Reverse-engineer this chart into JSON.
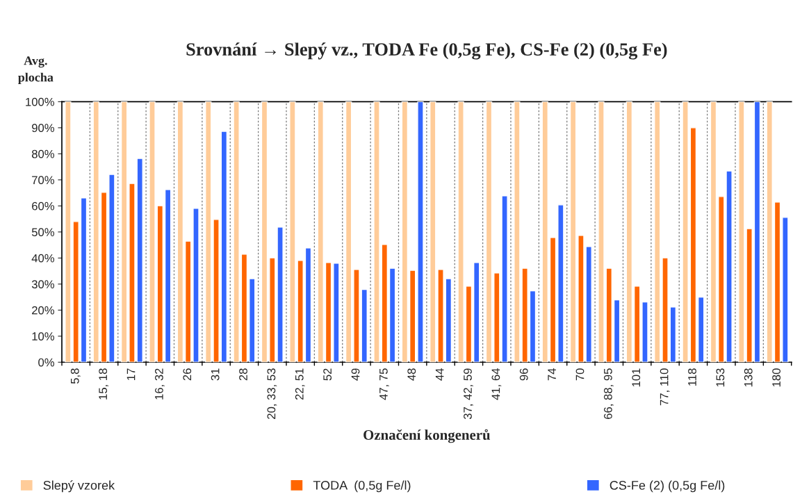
{
  "chart_data": {
    "type": "bar",
    "title": "Srovnání → Slepý vz., TODA Fe (0,5g Fe), CS-Fe (2) (0,5g Fe)",
    "xlabel": "Označení kongenerů",
    "ylabel": "Avg.\nplocha",
    "categories": [
      "5,8",
      "15, 18",
      "17",
      "16, 32",
      "26",
      "31",
      "28",
      "20, 33, 53",
      "22, 51",
      "52",
      "49",
      "47, 75",
      "48",
      "44",
      "37, 42, 59",
      "41, 64",
      "96",
      "74",
      "70",
      "66, 88, 95",
      "101",
      "77, 110",
      "118",
      "153",
      "138",
      "180"
    ],
    "series": [
      {
        "name": "Slepý vzorek",
        "color": "#ffcc99",
        "values": [
          100,
          100,
          100,
          100,
          100,
          100,
          100,
          100,
          100,
          100,
          100,
          100,
          100,
          100,
          100,
          100,
          100,
          100,
          100,
          100,
          100,
          100,
          100,
          100,
          100,
          100
        ]
      },
      {
        "name": "TODA  (0,5g Fe/l)",
        "color": "#ff6600",
        "values": [
          54.0,
          65.2,
          68.6,
          60.1,
          46.5,
          54.8,
          41.5,
          40.1,
          39.1,
          38.3,
          35.6,
          45.2,
          35.3,
          35.6,
          29.2,
          34.3,
          36.1,
          47.9,
          48.7,
          36.1,
          29.2,
          40.1,
          90.0,
          63.6,
          51.3,
          61.5
        ]
      },
      {
        "name": "CS-Fe (2) (0,5g Fe/l)",
        "color": "#3366ff",
        "values": [
          63.1,
          72.1,
          78.2,
          66.3,
          59.1,
          88.6,
          32.1,
          51.9,
          43.9,
          38.0,
          27.9,
          36.1,
          100,
          32.1,
          38.3,
          63.9,
          27.4,
          60.4,
          44.4,
          23.9,
          23.1,
          21.2,
          25.0,
          73.4,
          100,
          55.6
        ]
      }
    ],
    "ylim": [
      0,
      100
    ],
    "yticks": [
      {
        "value": 0,
        "label": "0%"
      },
      {
        "value": 10,
        "label": "10%"
      },
      {
        "value": 20,
        "label": "20%"
      },
      {
        "value": 30,
        "label": "30%"
      },
      {
        "value": 40,
        "label": "40%"
      },
      {
        "value": 50,
        "label": "50%"
      },
      {
        "value": 60,
        "label": "60%"
      },
      {
        "value": 70,
        "label": "70%"
      },
      {
        "value": 80,
        "label": "80%"
      },
      {
        "value": 90,
        "label": "90%"
      },
      {
        "value": 100,
        "label": "100%"
      }
    ],
    "grid": "x",
    "legend": "bottom"
  }
}
